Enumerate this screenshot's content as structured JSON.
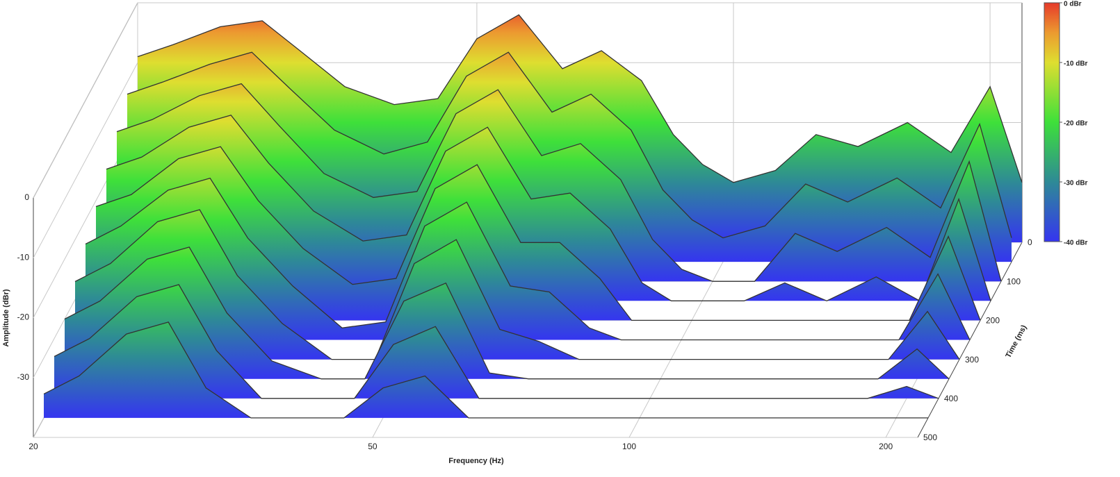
{
  "chart_data": {
    "type": "waterfall",
    "x_label": "Frequency (Hz)",
    "y_label": "Amplitude (dBr)",
    "t_label": "Time (ms)",
    "xscale": "log",
    "xlim": [
      20,
      218
    ],
    "xticks": [
      20,
      50,
      100,
      200
    ],
    "ylim": [
      -40,
      0
    ],
    "yticks": [
      0,
      -10,
      -20,
      -30
    ],
    "tlim": [
      0,
      500
    ],
    "tticks": [
      0,
      100,
      200,
      300,
      400,
      500
    ],
    "clim": [
      -40,
      0
    ],
    "cticks": [
      {
        "value": 0,
        "label": "0 dBr"
      },
      {
        "value": -10,
        "label": "-10 dBr"
      },
      {
        "value": -20,
        "label": "-20 dBr"
      },
      {
        "value": -30,
        "label": "-30 dBr"
      },
      {
        "value": -40,
        "label": "-40 dBr"
      }
    ],
    "colorscale": [
      {
        "value": 0,
        "color": "#e63a2a"
      },
      {
        "value": -5,
        "color": "#ec9a30"
      },
      {
        "value": -10,
        "color": "#dede30"
      },
      {
        "value": -20,
        "color": "#3ee03a"
      },
      {
        "value": -30,
        "color": "#2e8a96"
      },
      {
        "value": -40,
        "color": "#3535f0"
      }
    ],
    "line_color": "#333333",
    "x": [
      20,
      22,
      25,
      28,
      31,
      35,
      40,
      45,
      50,
      56,
      63,
      70,
      78,
      85,
      92,
      100,
      112,
      125,
      140,
      160,
      180,
      200,
      218
    ],
    "slices": [
      {
        "time": 0,
        "values": [
          -9,
          -7,
          -4,
          -3,
          -8,
          -14,
          -17,
          -16,
          -6,
          -2,
          -11,
          -8,
          -13,
          -22,
          -27,
          -30,
          -28,
          -22,
          -24,
          -20,
          -25,
          -14,
          -30
        ]
      },
      {
        "time": 50,
        "values": [
          -12,
          -10,
          -7,
          -5,
          -11,
          -18,
          -22,
          -20,
          -9,
          -5,
          -15,
          -12,
          -18,
          -28,
          -33,
          -36,
          -34,
          -27,
          -30,
          -26,
          -31,
          -17,
          -36
        ]
      },
      {
        "time": 100,
        "values": [
          -15,
          -13,
          -9,
          -7,
          -14,
          -22,
          -26,
          -25,
          -12,
          -8,
          -19,
          -17,
          -23,
          -33,
          -38,
          -40,
          -40,
          -32,
          -35,
          -31,
          -36,
          -20,
          -40
        ]
      },
      {
        "time": 150,
        "values": [
          -18,
          -16,
          -11,
          -9,
          -17,
          -25,
          -30,
          -29,
          -15,
          -11,
          -23,
          -22,
          -28,
          -37,
          -40,
          -40,
          -40,
          -37,
          -40,
          -36,
          -40,
          -23,
          -40
        ]
      },
      {
        "time": 200,
        "values": [
          -21,
          -19,
          -13,
          -11,
          -20,
          -28,
          -34,
          -33,
          -18,
          -14,
          -27,
          -27,
          -33,
          -40,
          -40,
          -40,
          -40,
          -40,
          -40,
          -40,
          -40,
          -26,
          -40
        ]
      },
      {
        "time": 250,
        "values": [
          -24,
          -21,
          -15,
          -13,
          -23,
          -31,
          -38,
          -37,
          -21,
          -17,
          -31,
          -32,
          -38,
          -40,
          -40,
          -40,
          -40,
          -40,
          -40,
          -40,
          -40,
          -29,
          -40
        ]
      },
      {
        "time": 300,
        "values": [
          -27,
          -24,
          -17,
          -15,
          -26,
          -34,
          -40,
          -40,
          -24,
          -20,
          -35,
          -37,
          -40,
          -40,
          -40,
          -40,
          -40,
          -40,
          -40,
          -40,
          -40,
          -32,
          -40
        ]
      },
      {
        "time": 350,
        "values": [
          -30,
          -27,
          -20,
          -18,
          -29,
          -37,
          -40,
          -40,
          -27,
          -24,
          -39,
          -40,
          -40,
          -40,
          -40,
          -40,
          -40,
          -40,
          -40,
          -40,
          -40,
          -35,
          -40
        ]
      },
      {
        "time": 400,
        "values": [
          -33,
          -30,
          -23,
          -21,
          -32,
          -40,
          -40,
          -40,
          -31,
          -28,
          -40,
          -40,
          -40,
          -40,
          -40,
          -40,
          -40,
          -40,
          -40,
          -40,
          -40,
          -38,
          -40
        ]
      },
      {
        "time": 450,
        "values": [
          -36,
          -33,
          -26,
          -24,
          -35,
          -40,
          -40,
          -40,
          -35,
          -33,
          -40,
          -40,
          -40,
          -40,
          -40,
          -40,
          -40,
          -40,
          -40,
          -40,
          -40,
          -40,
          -40
        ]
      }
    ]
  }
}
